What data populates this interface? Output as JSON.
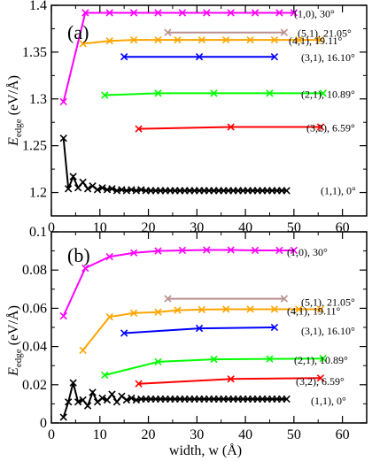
{
  "figure": {
    "xlabel": "width, w (Å)",
    "ylabel_main": "E",
    "ylabel_sub": "edge",
    "ylabel_unit": " (eV/Å)"
  },
  "chart_data": [
    {
      "type": "line",
      "panel": "(a)",
      "xlim": [
        0,
        65
      ],
      "ylim": [
        1.175,
        1.4
      ],
      "xticks": [
        0,
        10,
        20,
        30,
        40,
        50,
        60
      ],
      "yticks": [
        1.2,
        1.25,
        1.3,
        1.35,
        1.4
      ],
      "ytick_labels": [
        "1.2",
        "1.25",
        "1.3",
        "1.35",
        "1.4"
      ],
      "xlabel": "",
      "ylabel": "Edge (eV/Å)",
      "grid": false,
      "series": [
        {
          "name": "(1,0), 30°",
          "color": "#ff00ff",
          "x": [
            2.5,
            7,
            12,
            17,
            22,
            27,
            32,
            37,
            42,
            47,
            50
          ],
          "y": [
            1.297,
            1.392,
            1.392,
            1.392,
            1.392,
            1.392,
            1.392,
            1.392,
            1.392,
            1.392,
            1.392
          ],
          "markers": [
            0,
            1,
            2,
            3,
            4,
            5,
            6,
            7,
            8,
            9,
            10
          ]
        },
        {
          "name": "(5,1), 21.05°",
          "color": "#bc8f8f",
          "x": [
            24,
            48
          ],
          "y": [
            1.371,
            1.371
          ],
          "markers": [
            0,
            1
          ]
        },
        {
          "name": "(4,1), 19.11°",
          "color": "#ffa500",
          "x": [
            6.5,
            12,
            17,
            22,
            26,
            31,
            36,
            41,
            46,
            51,
            55.5
          ],
          "y": [
            1.359,
            1.362,
            1.363,
            1.363,
            1.363,
            1.363,
            1.363,
            1.363,
            1.363,
            1.363,
            1.363
          ],
          "markers": [
            0,
            1,
            2,
            3,
            4,
            5,
            6,
            7,
            8,
            9,
            10
          ]
        },
        {
          "name": "(3,1), 16.10°",
          "color": "#0000ff",
          "x": [
            15,
            30.5,
            46
          ],
          "y": [
            1.345,
            1.345,
            1.345
          ],
          "markers": [
            0,
            1,
            2
          ]
        },
        {
          "name": "(2,1), 10.89°",
          "color": "#00ff00",
          "x": [
            11,
            22,
            33.5,
            45,
            56
          ],
          "y": [
            1.304,
            1.306,
            1.306,
            1.306,
            1.306
          ],
          "markers": [
            0,
            1,
            2,
            3,
            4
          ]
        },
        {
          "name": "(3,2), 6.59°",
          "color": "#ff0000",
          "x": [
            18,
            37,
            55.5
          ],
          "y": [
            1.268,
            1.27,
            1.27
          ],
          "markers": [
            0,
            1,
            2
          ]
        },
        {
          "name": "(1,1), 0°",
          "color": "#000000",
          "x": [
            2.5,
            3.5,
            4.5,
            5.5,
            6.5,
            7.5,
            8.5,
            9.5,
            10.5,
            11.5,
            12.5,
            13.5,
            14.5,
            15.5,
            16.5,
            17.5,
            18.5,
            19.5,
            20.5,
            21.5,
            22.5,
            23.5,
            24.5,
            25.5,
            26.5,
            27.5,
            28.5,
            29.5,
            30.5,
            31.5,
            32.5,
            33.5,
            34.5,
            35.5,
            36.5,
            37.5,
            38.5,
            39.5,
            40.5,
            41.5,
            42.5,
            43.5,
            44.5,
            45.5,
            46.5,
            47.5,
            48.5
          ],
          "y": [
            1.258,
            1.204,
            1.217,
            1.205,
            1.211,
            1.204,
            1.207,
            1.203,
            1.205,
            1.203,
            1.204,
            1.202,
            1.203,
            1.202,
            1.203,
            1.202,
            1.203,
            1.202,
            1.202,
            1.202,
            1.202,
            1.202,
            1.202,
            1.202,
            1.202,
            1.202,
            1.202,
            1.202,
            1.202,
            1.202,
            1.202,
            1.202,
            1.202,
            1.202,
            1.202,
            1.202,
            1.202,
            1.202,
            1.202,
            1.202,
            1.202,
            1.202,
            1.202,
            1.202,
            1.202,
            1.202,
            1.202
          ]
        }
      ]
    },
    {
      "type": "line",
      "panel": "(b)",
      "xlim": [
        0,
        65
      ],
      "ylim": [
        0,
        0.1
      ],
      "xticks": [
        0,
        10,
        20,
        30,
        40,
        50,
        60
      ],
      "yticks": [
        0,
        0.02,
        0.04,
        0.06,
        0.08,
        0.1
      ],
      "ytick_labels": [
        "0",
        "0.02",
        "0.04",
        "0.06",
        "0.08",
        "0.1"
      ],
      "xlabel": "width, w (Å)",
      "ylabel": "Edge (eV/Å)",
      "grid": false,
      "series": [
        {
          "name": "(1,0), 30°",
          "color": "#ff00ff",
          "x": [
            2.5,
            7,
            12,
            17,
            22,
            27,
            32,
            37,
            42,
            47,
            50
          ],
          "y": [
            0.056,
            0.081,
            0.087,
            0.089,
            0.09,
            0.0903,
            0.0905,
            0.0905,
            0.0903,
            0.0903,
            0.0903
          ],
          "markers": [
            0,
            1,
            2,
            3,
            4,
            5,
            6,
            7,
            8,
            9,
            10
          ]
        },
        {
          "name": "(5,1), 21.05°",
          "color": "#bc8f8f",
          "x": [
            24,
            48
          ],
          "y": [
            0.065,
            0.065
          ],
          "markers": [
            0,
            1
          ]
        },
        {
          "name": "(4,1), 19.11°",
          "color": "#ffa500",
          "x": [
            6.5,
            12,
            17,
            22,
            26,
            31,
            36,
            41,
            46,
            51,
            55.5
          ],
          "y": [
            0.038,
            0.0555,
            0.0575,
            0.058,
            0.059,
            0.0593,
            0.0595,
            0.0595,
            0.0595,
            0.0595,
            0.0595
          ],
          "markers": [
            0,
            1,
            2,
            3,
            4,
            5,
            6,
            7,
            8,
            9,
            10
          ]
        },
        {
          "name": "(3,1), 16.10°",
          "color": "#0000ff",
          "x": [
            15,
            30.5,
            46
          ],
          "y": [
            0.047,
            0.0495,
            0.05
          ],
          "markers": [
            0,
            1,
            2
          ]
        },
        {
          "name": "(2,1), 10.89°",
          "color": "#00ff00",
          "x": [
            11,
            22,
            33.5,
            45,
            56
          ],
          "y": [
            0.025,
            0.032,
            0.0333,
            0.0335,
            0.0337
          ],
          "markers": [
            0,
            1,
            2,
            3,
            4
          ]
        },
        {
          "name": "(3,2), 6.59°",
          "color": "#ff0000",
          "x": [
            18,
            37,
            55.5
          ],
          "y": [
            0.0205,
            0.023,
            0.0235
          ],
          "markers": [
            0,
            1,
            2
          ]
        },
        {
          "name": "(1,1), 0°",
          "color": "#000000",
          "x": [
            2.5,
            3.5,
            4.5,
            5.5,
            6.5,
            7.5,
            8.5,
            9.5,
            10.5,
            11.5,
            12.5,
            13.5,
            14.5,
            15.5,
            16.5,
            17.5,
            18.5,
            19.5,
            20.5,
            21.5,
            22.5,
            23.5,
            24.5,
            25.5,
            26.5,
            27.5,
            28.5,
            29.5,
            30.5,
            31.5,
            32.5,
            33.5,
            34.5,
            35.5,
            36.5,
            37.5,
            38.5,
            39.5,
            40.5,
            41.5,
            42.5,
            43.5,
            44.5,
            45.5,
            46.5,
            47.5,
            48.5
          ],
          "y": [
            0.003,
            0.011,
            0.021,
            0.011,
            0.012,
            0.009,
            0.016,
            0.011,
            0.013,
            0.012,
            0.015,
            0.011,
            0.014,
            0.012,
            0.013,
            0.012,
            0.0125,
            0.0125,
            0.0125,
            0.0125,
            0.0125,
            0.0125,
            0.0125,
            0.0125,
            0.0125,
            0.0125,
            0.0125,
            0.0125,
            0.0125,
            0.0125,
            0.0125,
            0.0125,
            0.0125,
            0.0125,
            0.0125,
            0.0125,
            0.0125,
            0.0125,
            0.0125,
            0.0125,
            0.0125,
            0.0125,
            0.0125,
            0.0125,
            0.0125,
            0.0125,
            0.0125
          ]
        }
      ]
    }
  ]
}
